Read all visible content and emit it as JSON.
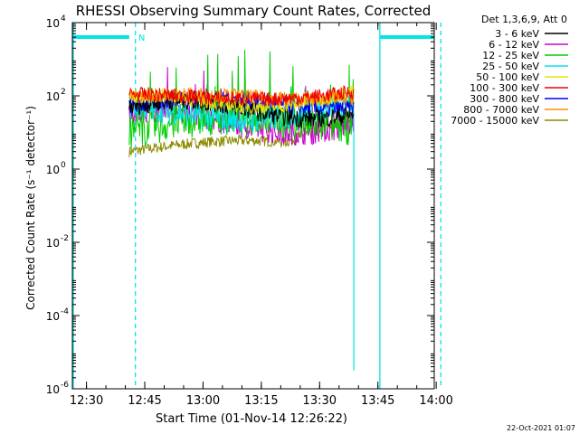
{
  "chart_data": {
    "type": "line",
    "title": "RHESSI Observing Summary Count Rates, Corrected",
    "xlabel": "Start Time (01-Nov-14 12:26:22)",
    "ylabel": "Corrected Count Rate (s⁻¹ detector⁻¹)",
    "ylog": true,
    "ylim": [
      1e-06,
      10000.0
    ],
    "xlim_minutes": [
      26.37,
      119.5
    ],
    "x_ticks": [
      {
        "m": 30,
        "label": "12:30"
      },
      {
        "m": 45,
        "label": "12:45"
      },
      {
        "m": 60,
        "label": "13:00"
      },
      {
        "m": 75,
        "label": "13:15"
      },
      {
        "m": 90,
        "label": "13:30"
      },
      {
        "m": 105,
        "label": "13:45"
      },
      {
        "m": 120,
        "label": "14:00"
      }
    ],
    "y_ticks": [
      {
        "v": -6,
        "base": "10",
        "exp": "-6"
      },
      {
        "v": -4,
        "base": "10",
        "exp": "-4"
      },
      {
        "v": -2,
        "base": "10",
        "exp": "-2"
      },
      {
        "v": 0,
        "base": "10",
        "exp": "0"
      },
      {
        "v": 2,
        "base": "10",
        "exp": "2"
      },
      {
        "v": 4,
        "base": "10",
        "exp": "4"
      }
    ],
    "legend_title": "Det 1,3,6,9, Att 0",
    "legend_placement": "right-outside",
    "series": [
      {
        "name": "3 - 6 keV",
        "color": "#000000",
        "approx_level": 50
      },
      {
        "name": "6 - 12 keV",
        "color": "#cc00cc",
        "approx_level": 20
      },
      {
        "name": "12 - 25 keV",
        "color": "#00cc00",
        "approx_level": 10
      },
      {
        "name": "25 - 50 keV",
        "color": "#00e5e5",
        "approx_level": 30
      },
      {
        "name": "50 - 100 keV",
        "color": "#e5e500",
        "approx_level": 60
      },
      {
        "name": "100 - 300 keV",
        "color": "#ee0000",
        "approx_level": 80
      },
      {
        "name": "300 - 800 keV",
        "color": "#0000ee",
        "approx_level": 50
      },
      {
        "name": "800 - 7000 keV",
        "color": "#ff8c00",
        "approx_level": 70
      },
      {
        "name": "7000 - 15000 keV",
        "color": "#8b8b00",
        "approx_level": 3
      }
    ],
    "data_span_minutes": [
      41,
      98.8
    ],
    "flags": [
      {
        "label": "N",
        "start_m": 31.5,
        "end_m": 41
      }
    ],
    "flag_bars": [
      {
        "start_m": 26.4,
        "end_m": 41
      },
      {
        "start_m": 105.5,
        "end_m": 119.5
      }
    ],
    "night_lines": [
      {
        "m": 26.6,
        "style": "solid"
      },
      {
        "m": 42.6,
        "style": "dashed"
      },
      {
        "m": 105.5,
        "style": "solid"
      },
      {
        "m": 121.2,
        "style": "dashed"
      }
    ],
    "footer_date": "22-Oct-2021 01:07"
  }
}
